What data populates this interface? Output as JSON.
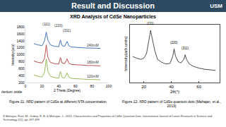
{
  "slide": {
    "title": "Result and Discussion",
    "logo": "USM",
    "subtitle": "XRD Analysis of CdSe Nanoparticles",
    "captions": [
      "Figure 11: XRD pattern of CdSe at different NTA concentration",
      "Figure 12: XRD pattern of CdSe quantum dots (Mahajan, et al., 2013)"
    ],
    "citation": "S Mahajan, Rani, M., Dubey, R. B. & Mahajan, J., 2013. Characteristics and Properties of CdSe Quantum Dots. International Journal of Latest Research in Science and Technology 2(1), pp. 497-499"
  },
  "chart_data": [
    {
      "type": "line",
      "x_label": "2 Theta (Degree)",
      "y_label": "Intensity (a.u)",
      "x": [
        10,
        15,
        20,
        23,
        25,
        27,
        30,
        35,
        40,
        42,
        44,
        47,
        50,
        52,
        55,
        60,
        65,
        70,
        75,
        80,
        85,
        90
      ],
      "series": [
        {
          "name": "120mM",
          "color": "#9bbb59",
          "values": [
            420,
            380,
            360,
            500,
            880,
            520,
            380,
            340,
            330,
            520,
            350,
            330,
            480,
            360,
            320,
            310,
            300,
            300,
            290,
            290,
            280,
            280
          ]
        },
        {
          "name": "180mM",
          "color": "#c0504d",
          "values": [
            820,
            780,
            760,
            900,
            1280,
            920,
            780,
            740,
            730,
            920,
            760,
            740,
            880,
            760,
            720,
            710,
            700,
            700,
            690,
            690,
            680,
            680
          ]
        },
        {
          "name": "240mM",
          "color": "#4472c4",
          "values": [
            1320,
            1280,
            1260,
            1400,
            1650,
            1420,
            1280,
            1240,
            1230,
            1420,
            1260,
            1240,
            1380,
            1260,
            1220,
            1210,
            1200,
            1200,
            1190,
            1190,
            1180,
            1180
          ]
        }
      ],
      "xlim": [
        0,
        100
      ],
      "xticks": [
        0,
        20,
        40,
        60,
        80,
        100
      ],
      "ylim": [
        200,
        1800
      ],
      "yticks": [
        200,
        400,
        600,
        800,
        1000,
        1200,
        1400,
        1600,
        1800
      ],
      "grid": false,
      "annotations": [
        {
          "text": "(111)",
          "x": 25,
          "y": 1780
        },
        {
          "text": "(220)",
          "x": 40,
          "y": 1740
        },
        {
          "text": "(311)",
          "x": 50,
          "y": 1600
        },
        {
          "text": "selenium oxide"
        }
      ]
    },
    {
      "type": "line",
      "x_label": "2θ(°)",
      "y_label": "Intensity(arb.units)",
      "x": [
        12,
        15,
        18,
        20,
        22,
        24,
        25,
        26,
        28,
        30,
        33,
        36,
        39,
        41,
        42,
        43,
        45,
        47,
        49,
        50,
        51,
        53,
        56,
        60,
        64,
        68,
        72
      ],
      "series": [
        {
          "name": "CdSe quantum dots",
          "color": "#000000",
          "values": [
            45,
            42,
            40,
            42,
            50,
            75,
            90,
            78,
            55,
            40,
            35,
            32,
            33,
            45,
            58,
            46,
            36,
            34,
            40,
            48,
            40,
            32,
            28,
            25,
            23,
            22,
            21
          ]
        }
      ],
      "xlim": [
        10,
        75
      ],
      "xticks": [
        20,
        40,
        60
      ],
      "ylim": [
        0,
        100
      ],
      "tick_labels": "x",
      "grid": false,
      "annotations": [
        {
          "text": "(111)",
          "x": 25,
          "y": 96
        },
        {
          "text": "(220)",
          "x": 42,
          "y": 64
        },
        {
          "text": "(311)",
          "x": 50,
          "y": 54
        }
      ]
    }
  ]
}
